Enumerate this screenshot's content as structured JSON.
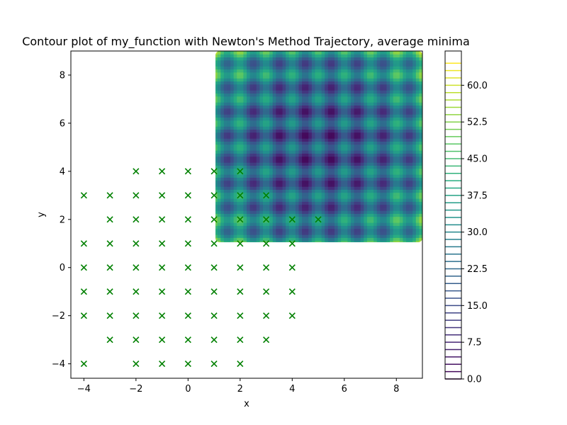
{
  "chart_data": {
    "type": "contour",
    "title": "Contour plot of my_function with Newton's Method Trajectory, average minima",
    "xlabel": "x",
    "ylabel": "y",
    "xlim": [
      -4.5,
      9
    ],
    "ylim": [
      -4.6,
      9
    ],
    "xticks": [
      -4,
      -2,
      0,
      2,
      4,
      6,
      8
    ],
    "yticks": [
      -4,
      -2,
      0,
      2,
      4,
      6,
      8
    ],
    "xtick_labels": [
      "−4",
      "−2",
      "0",
      "2",
      "4",
      "6",
      "8"
    ],
    "ytick_labels": [
      "−4",
      "−2",
      "0",
      "2",
      "4",
      "6",
      "8"
    ],
    "grid": false,
    "contour": {
      "x_range": [
        1,
        9
      ],
      "y_range": [
        1,
        9
      ],
      "min_centers_x": [
        5
      ],
      "min_centers_y": [
        5
      ],
      "period": 1,
      "colormap": "viridis",
      "levels_range": [
        0,
        64.5
      ],
      "level_step": 1.5
    },
    "colorbar": {
      "range": [
        0,
        67
      ],
      "ticks": [
        0.0,
        7.5,
        15.0,
        22.5,
        30.0,
        37.5,
        45.0,
        52.5,
        60.0
      ],
      "tick_labels": [
        "0.0",
        "7.5",
        "15.0",
        "22.5",
        "30.0",
        "37.5",
        "45.0",
        "52.5",
        "60.0"
      ]
    },
    "markers": {
      "symbol": "x",
      "color": "#008000",
      "points": [
        [
          -4,
          3
        ],
        [
          -4,
          1
        ],
        [
          -4,
          0
        ],
        [
          -4,
          -1
        ],
        [
          -4,
          -2
        ],
        [
          -4,
          -4
        ],
        [
          -3,
          3
        ],
        [
          -3,
          2
        ],
        [
          -3,
          1
        ],
        [
          -3,
          0
        ],
        [
          -3,
          -1
        ],
        [
          -3,
          -2
        ],
        [
          -3,
          -3
        ],
        [
          -2,
          4
        ],
        [
          -2,
          3
        ],
        [
          -2,
          2
        ],
        [
          -2,
          1
        ],
        [
          -2,
          0
        ],
        [
          -2,
          -1
        ],
        [
          -2,
          -2
        ],
        [
          -2,
          -3
        ],
        [
          -2,
          -4
        ],
        [
          -1,
          4
        ],
        [
          -1,
          3
        ],
        [
          -1,
          2
        ],
        [
          -1,
          1
        ],
        [
          -1,
          0
        ],
        [
          -1,
          -1
        ],
        [
          -1,
          -2
        ],
        [
          -1,
          -3
        ],
        [
          -1,
          -4
        ],
        [
          0,
          4
        ],
        [
          0,
          3
        ],
        [
          0,
          2
        ],
        [
          0,
          1
        ],
        [
          0,
          0
        ],
        [
          0,
          -1
        ],
        [
          0,
          -2
        ],
        [
          0,
          -3
        ],
        [
          0,
          -4
        ],
        [
          1,
          4
        ],
        [
          1,
          3
        ],
        [
          1,
          2
        ],
        [
          1,
          1
        ],
        [
          1,
          0
        ],
        [
          1,
          -1
        ],
        [
          1,
          -2
        ],
        [
          1,
          -3
        ],
        [
          1,
          -4
        ],
        [
          2,
          4
        ],
        [
          2,
          3
        ],
        [
          2,
          2
        ],
        [
          2,
          1
        ],
        [
          2,
          0
        ],
        [
          2,
          -1
        ],
        [
          2,
          -2
        ],
        [
          2,
          -3
        ],
        [
          2,
          -4
        ],
        [
          3,
          3
        ],
        [
          3,
          2
        ],
        [
          3,
          1
        ],
        [
          3,
          0
        ],
        [
          3,
          -1
        ],
        [
          3,
          -2
        ],
        [
          3,
          -3
        ],
        [
          4,
          2
        ],
        [
          4,
          1
        ],
        [
          4,
          0
        ],
        [
          4,
          -1
        ],
        [
          4,
          -2
        ],
        [
          5,
          2
        ]
      ]
    }
  }
}
